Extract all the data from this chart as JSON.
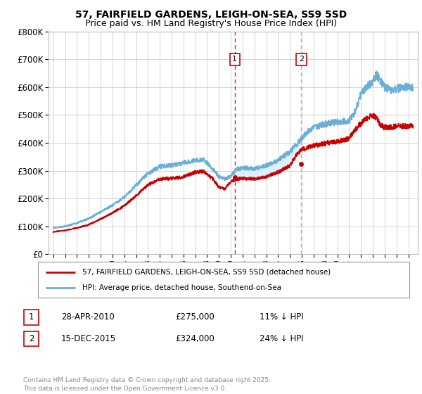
{
  "title": "57, FAIRFIELD GARDENS, LEIGH-ON-SEA, SS9 5SD",
  "subtitle": "Price paid vs. HM Land Registry's House Price Index (HPI)",
  "ylim": [
    0,
    800000
  ],
  "yticks": [
    0,
    100000,
    200000,
    300000,
    400000,
    500000,
    600000,
    700000,
    800000
  ],
  "ytick_labels": [
    "£0",
    "£100K",
    "£200K",
    "£300K",
    "£400K",
    "£500K",
    "£600K",
    "£700K",
    "£800K"
  ],
  "xlim_start": 1994.6,
  "xlim_end": 2025.8,
  "hpi_color": "#6baed6",
  "price_color": "#cc0000",
  "shade_color": "#ddeeff",
  "vline1_color": "#cc0000",
  "vline2_color": "#aaaaaa",
  "marker1_x": 2010.33,
  "marker2_x": 2015.96,
  "marker1_price": 275000,
  "marker2_price": 324000,
  "legend_line1": "57, FAIRFIELD GARDENS, LEIGH-ON-SEA, SS9 5SD (detached house)",
  "legend_line2": "HPI: Average price, detached house, Southend-on-Sea",
  "ann1_label": "1",
  "ann1_date": "28-APR-2010",
  "ann1_price": "£275,000",
  "ann1_pct": "11% ↓ HPI",
  "ann2_label": "2",
  "ann2_date": "15-DEC-2015",
  "ann2_price": "£324,000",
  "ann2_pct": "24% ↓ HPI",
  "footer": "Contains HM Land Registry data © Crown copyright and database right 2025.\nThis data is licensed under the Open Government Licence v3.0.",
  "bg": "#ffffff",
  "title_fontsize": 10,
  "subtitle_fontsize": 9
}
